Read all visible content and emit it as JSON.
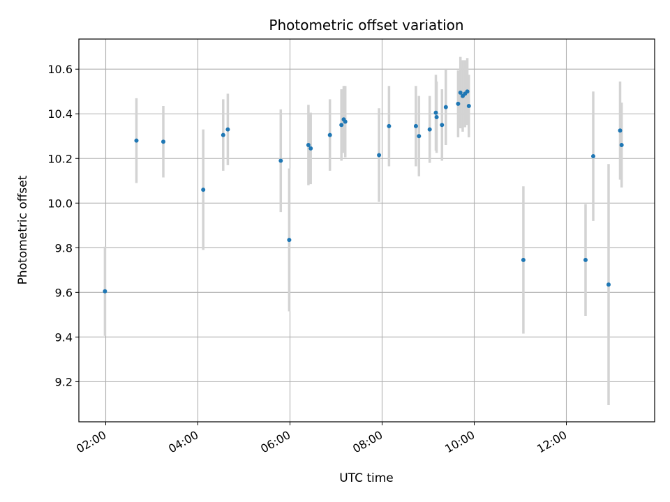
{
  "chart_data": {
    "type": "scatter",
    "title": "Photometric offset variation",
    "xlabel": "UTC time",
    "ylabel": "Photometric offset",
    "grid": true,
    "xlim": [
      "01:25",
      "13:55"
    ],
    "ylim": [
      9.02,
      10.735
    ],
    "x_ticks": [
      "02:00",
      "04:00",
      "06:00",
      "08:00",
      "10:00",
      "12:00"
    ],
    "y_ticks": [
      "9.2",
      "9.4",
      "9.6",
      "9.8",
      "10.0",
      "10.2",
      "10.4",
      "10.6"
    ],
    "colors": {
      "point": "#1f77b4",
      "errorbar": "#d3d3d3",
      "grid": "#b0b0b0"
    },
    "series": [
      {
        "points": [
          {
            "x": "01:59",
            "y": 9.605,
            "err": 0.2
          },
          {
            "x": "02:40",
            "y": 10.28,
            "err": 0.19
          },
          {
            "x": "03:15",
            "y": 10.275,
            "err": 0.16
          },
          {
            "x": "04:07",
            "y": 10.06,
            "err": 0.27
          },
          {
            "x": "04:33",
            "y": 10.305,
            "err": 0.16
          },
          {
            "x": "04:39",
            "y": 10.33,
            "err": 0.16
          },
          {
            "x": "05:48",
            "y": 10.19,
            "err": 0.23
          },
          {
            "x": "05:59",
            "y": 9.835,
            "err": 0.32
          },
          {
            "x": "06:24",
            "y": 10.26,
            "err": 0.18
          },
          {
            "x": "06:27",
            "y": 10.245,
            "err": 0.16
          },
          {
            "x": "06:52",
            "y": 10.305,
            "err": 0.16
          },
          {
            "x": "07:07",
            "y": 10.35,
            "err": 0.16
          },
          {
            "x": "07:10",
            "y": 10.375,
            "err": 0.15
          },
          {
            "x": "07:12",
            "y": 10.365,
            "err": 0.16
          },
          {
            "x": "07:56",
            "y": 10.215,
            "err": 0.21
          },
          {
            "x": "08:09",
            "y": 10.345,
            "err": 0.18
          },
          {
            "x": "08:44",
            "y": 10.345,
            "err": 0.18
          },
          {
            "x": "08:48",
            "y": 10.3,
            "err": 0.18
          },
          {
            "x": "09:02",
            "y": 10.33,
            "err": 0.15
          },
          {
            "x": "09:10",
            "y": 10.405,
            "err": 0.17
          },
          {
            "x": "09:11",
            "y": 10.385,
            "err": 0.16
          },
          {
            "x": "09:18",
            "y": 10.35,
            "err": 0.16
          },
          {
            "x": "09:23",
            "y": 10.43,
            "err": 0.17
          },
          {
            "x": "09:39",
            "y": 10.445,
            "err": 0.15
          },
          {
            "x": "09:42",
            "y": 10.495,
            "err": 0.16
          },
          {
            "x": "09:45",
            "y": 10.48,
            "err": 0.16
          },
          {
            "x": "09:48",
            "y": 10.49,
            "err": 0.15
          },
          {
            "x": "09:51",
            "y": 10.5,
            "err": 0.15
          },
          {
            "x": "09:53",
            "y": 10.435,
            "err": 0.14
          },
          {
            "x": "11:04",
            "y": 9.745,
            "err": 0.33
          },
          {
            "x": "12:25",
            "y": 9.745,
            "err": 0.25
          },
          {
            "x": "12:35",
            "y": 10.21,
            "err": 0.29
          },
          {
            "x": "12:55",
            "y": 9.635,
            "err": 0.54
          },
          {
            "x": "13:10",
            "y": 10.325,
            "err": 0.22
          },
          {
            "x": "13:12",
            "y": 10.26,
            "err": 0.19
          }
        ]
      }
    ]
  }
}
